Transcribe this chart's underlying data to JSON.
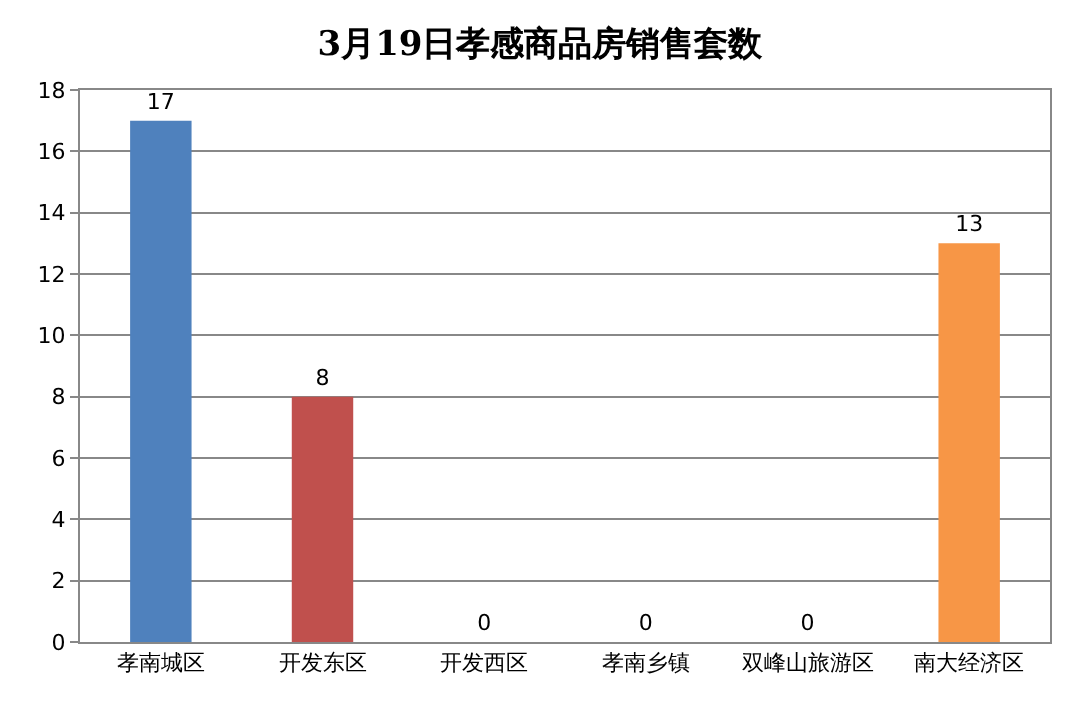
{
  "chart_data": {
    "type": "bar",
    "title": "3月19日孝感商品房销售套数",
    "categories": [
      "孝南城区",
      "开发东区",
      "开发西区",
      "孝南乡镇",
      "双峰山旅游区",
      "南大经济区"
    ],
    "values": [
      17,
      8,
      0,
      0,
      0,
      13
    ],
    "colors": [
      "#4f81bd",
      "#c0504d",
      "#9bbb59",
      "#8064a2",
      "#4bacc6",
      "#f79646"
    ],
    "ylim": [
      0,
      18
    ],
    "yticks": [
      0,
      2,
      4,
      6,
      8,
      10,
      12,
      14,
      16,
      18
    ],
    "grid": "y",
    "data_labels": true
  }
}
